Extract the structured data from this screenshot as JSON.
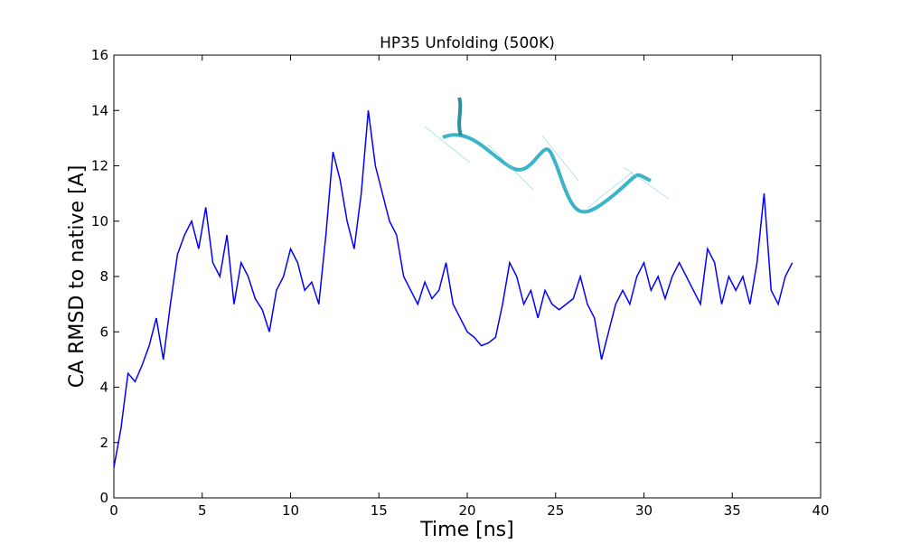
{
  "chart_data": {
    "type": "line",
    "title": "HP35 Unfolding (500K)",
    "x_label": "Time [ns]",
    "y_label": "CA RMSD to native [A]",
    "x": [
      0,
      0.4,
      0.8,
      1.2,
      1.6,
      2.0,
      2.4,
      2.8,
      3.2,
      3.6,
      4.0,
      4.4,
      4.8,
      5.2,
      5.6,
      6.0,
      6.4,
      6.8,
      7.2,
      7.6,
      8.0,
      8.4,
      8.8,
      9.2,
      9.6,
      10.0,
      10.4,
      10.8,
      11.2,
      11.6,
      12.0,
      12.4,
      12.8,
      13.2,
      13.6,
      14.0,
      14.4,
      14.8,
      15.2,
      15.6,
      16.0,
      16.4,
      16.8,
      17.2,
      17.6,
      18.0,
      18.4,
      18.8,
      19.2,
      19.6,
      20.0,
      20.4,
      20.8,
      21.2,
      21.6,
      22.0,
      22.4,
      22.8,
      23.2,
      23.6,
      24.0,
      24.4,
      24.8,
      25.2,
      25.6,
      26.0,
      26.4,
      26.8,
      27.2,
      27.6,
      28.0,
      28.4,
      28.8,
      29.2,
      29.6,
      30.0,
      30.4,
      30.8,
      31.2,
      31.6,
      32.0,
      32.4,
      32.8,
      33.2,
      33.6,
      34.0,
      34.4,
      34.8,
      35.2,
      35.6,
      36.0,
      36.4,
      36.8,
      37.2,
      37.6,
      38.0,
      38.4
    ],
    "values": [
      1.1,
      2.5,
      4.5,
      4.2,
      4.8,
      5.5,
      6.5,
      5.0,
      7.0,
      8.8,
      9.5,
      10.0,
      9.0,
      10.5,
      8.5,
      8.0,
      9.5,
      7.0,
      8.5,
      8.0,
      7.2,
      6.8,
      6.0,
      7.5,
      8.0,
      9.0,
      8.5,
      7.5,
      7.8,
      7.0,
      9.5,
      12.5,
      11.5,
      10.0,
      9.0,
      11.0,
      14.0,
      12.0,
      11.0,
      10.0,
      9.5,
      8.0,
      7.5,
      7.0,
      7.8,
      7.2,
      7.5,
      8.5,
      7.0,
      6.5,
      6.0,
      5.8,
      5.5,
      5.6,
      5.8,
      7.0,
      8.5,
      8.0,
      7.0,
      7.5,
      6.5,
      7.5,
      7.0,
      6.8,
      7.0,
      7.2,
      8.0,
      7.0,
      6.5,
      5.0,
      6.0,
      7.0,
      7.5,
      7.0,
      8.0,
      8.5,
      7.5,
      8.0,
      7.2,
      8.0,
      8.5,
      8.0,
      7.5,
      7.0,
      9.0,
      8.5,
      7.0,
      8.0,
      7.5,
      8.0,
      7.0,
      8.5,
      11.0,
      7.5,
      7.0,
      8.0,
      8.5
    ],
    "color": "#0000ff",
    "xlim": [
      0,
      40
    ],
    "xticks": [
      0,
      5,
      10,
      15,
      20,
      25,
      30,
      35,
      40
    ],
    "ylim": [
      0,
      16
    ],
    "yticks": [
      0,
      2,
      4,
      6,
      8,
      10,
      12,
      14,
      16
    ],
    "grid": false
  }
}
